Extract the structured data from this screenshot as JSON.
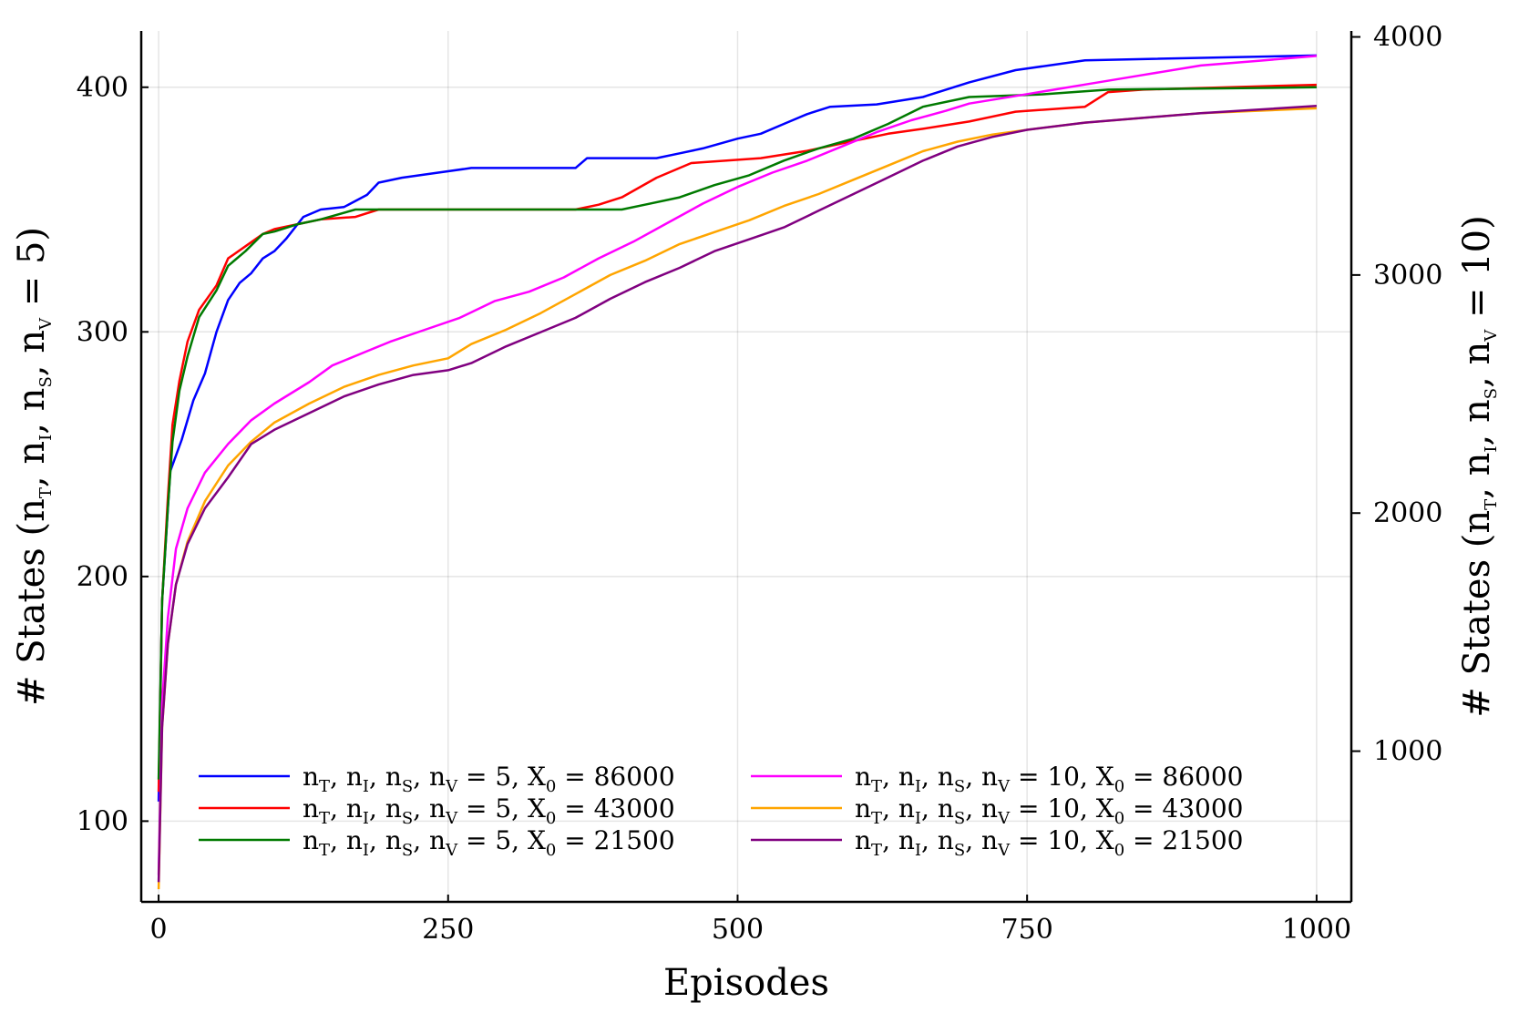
{
  "chart_data": {
    "type": "line",
    "title": "",
    "xlabel": "Episodes",
    "ylabel": "# States (n_T, n_I, n_S, n_V = 5)",
    "y2label": "# States (n_T, n_I, n_S, n_V = 10)",
    "ylabel_parts": {
      "prefix": "# States (",
      "vars": [
        "n",
        "T",
        "n",
        "I",
        "n",
        "S",
        "n",
        "V"
      ],
      "suffix": " = 5)"
    },
    "y2label_parts": {
      "prefix": "# States (",
      "vars": [
        "n",
        "T",
        "n",
        "I",
        "n",
        "S",
        "n",
        "V"
      ],
      "suffix": " = 10)"
    },
    "xlim": [
      -15,
      1030
    ],
    "ylim": [
      67,
      423
    ],
    "y2lim": [
      367,
      4025
    ],
    "xticks": [
      0,
      250,
      500,
      750,
      1000
    ],
    "xtick_labels": [
      "0",
      "250",
      "500",
      "750",
      "1000"
    ],
    "yticks": [
      100,
      200,
      300,
      400
    ],
    "ytick_labels": [
      "100",
      "200",
      "300",
      "400"
    ],
    "y2ticks": [
      1000,
      2000,
      3000,
      4000
    ],
    "y2tick_labels": [
      "1000",
      "2000",
      "3000",
      "4000"
    ],
    "grid": true,
    "legend_position": "bottom",
    "legend_columns": 2,
    "series": [
      {
        "name": "n_T, n_I, n_S, n_V = 5,  X_0 = 86000",
        "nval": "5",
        "x0": "86000",
        "axis": "left",
        "color": "#0000ff",
        "points": [
          [
            0,
            108
          ],
          [
            3,
            190
          ],
          [
            10,
            243
          ],
          [
            20,
            256
          ],
          [
            30,
            272
          ],
          [
            40,
            283
          ],
          [
            50,
            300
          ],
          [
            60,
            313
          ],
          [
            70,
            320
          ],
          [
            80,
            324
          ],
          [
            90,
            330
          ],
          [
            100,
            333
          ],
          [
            110,
            338
          ],
          [
            125,
            347
          ],
          [
            140,
            350
          ],
          [
            160,
            351
          ],
          [
            180,
            356
          ],
          [
            190,
            361
          ],
          [
            210,
            363
          ],
          [
            240,
            365
          ],
          [
            270,
            367
          ],
          [
            300,
            367
          ],
          [
            360,
            367
          ],
          [
            370,
            371
          ],
          [
            430,
            371
          ],
          [
            450,
            373
          ],
          [
            470,
            375
          ],
          [
            500,
            379
          ],
          [
            520,
            381
          ],
          [
            540,
            385
          ],
          [
            560,
            389
          ],
          [
            580,
            392
          ],
          [
            620,
            393
          ],
          [
            660,
            396
          ],
          [
            700,
            402
          ],
          [
            740,
            407
          ],
          [
            800,
            411
          ],
          [
            1000,
            413
          ]
        ]
      },
      {
        "name": "n_T, n_I, n_S, n_V = 5,  X_0 = 43000",
        "nval": "5",
        "x0": "43000",
        "axis": "left",
        "color": "#ff0000",
        "points": [
          [
            0,
            112
          ],
          [
            3,
            190
          ],
          [
            8,
            232
          ],
          [
            12,
            262
          ],
          [
            18,
            280
          ],
          [
            25,
            296
          ],
          [
            35,
            309
          ],
          [
            50,
            319
          ],
          [
            60,
            330
          ],
          [
            75,
            335
          ],
          [
            90,
            340
          ],
          [
            100,
            342
          ],
          [
            120,
            344
          ],
          [
            140,
            346
          ],
          [
            170,
            347
          ],
          [
            190,
            350
          ],
          [
            360,
            350
          ],
          [
            380,
            352
          ],
          [
            400,
            355
          ],
          [
            430,
            363
          ],
          [
            460,
            369
          ],
          [
            520,
            371
          ],
          [
            560,
            374
          ],
          [
            600,
            378
          ],
          [
            630,
            381
          ],
          [
            660,
            383
          ],
          [
            700,
            386
          ],
          [
            740,
            390
          ],
          [
            800,
            392
          ],
          [
            820,
            398
          ],
          [
            850,
            399
          ],
          [
            1000,
            401
          ]
        ]
      },
      {
        "name": "n_T, n_I, n_S, n_V = 5,  X_0 = 21500",
        "nval": "5",
        "x0": "21500",
        "axis": "left",
        "color": "#007a00",
        "points": [
          [
            0,
            117
          ],
          [
            3,
            190
          ],
          [
            8,
            228
          ],
          [
            12,
            255
          ],
          [
            18,
            276
          ],
          [
            25,
            290
          ],
          [
            35,
            306
          ],
          [
            50,
            317
          ],
          [
            60,
            327
          ],
          [
            75,
            333
          ],
          [
            90,
            340
          ],
          [
            100,
            341
          ],
          [
            120,
            344
          ],
          [
            140,
            346
          ],
          [
            170,
            350
          ],
          [
            400,
            350
          ],
          [
            420,
            352
          ],
          [
            450,
            355
          ],
          [
            480,
            360
          ],
          [
            510,
            364
          ],
          [
            540,
            370
          ],
          [
            570,
            375
          ],
          [
            600,
            379
          ],
          [
            630,
            385
          ],
          [
            660,
            392
          ],
          [
            700,
            396
          ],
          [
            760,
            397
          ],
          [
            820,
            399
          ],
          [
            1000,
            400
          ]
        ]
      },
      {
        "name": "n_T, n_I, n_S, n_V = 10,  X_0 = 86000",
        "nval": "10",
        "x0": "86000",
        "axis": "right",
        "color": "#ff00ff",
        "points": [
          [
            0,
            480
          ],
          [
            3,
            1200
          ],
          [
            8,
            1560
          ],
          [
            15,
            1850
          ],
          [
            25,
            2020
          ],
          [
            40,
            2170
          ],
          [
            60,
            2290
          ],
          [
            80,
            2390
          ],
          [
            100,
            2460
          ],
          [
            130,
            2550
          ],
          [
            150,
            2620
          ],
          [
            180,
            2680
          ],
          [
            200,
            2720
          ],
          [
            230,
            2770
          ],
          [
            260,
            2820
          ],
          [
            290,
            2890
          ],
          [
            320,
            2930
          ],
          [
            350,
            2990
          ],
          [
            380,
            3070
          ],
          [
            410,
            3140
          ],
          [
            440,
            3220
          ],
          [
            470,
            3300
          ],
          [
            500,
            3370
          ],
          [
            530,
            3430
          ],
          [
            560,
            3480
          ],
          [
            590,
            3540
          ],
          [
            620,
            3600
          ],
          [
            650,
            3650
          ],
          [
            680,
            3690
          ],
          [
            700,
            3720
          ],
          [
            750,
            3760
          ],
          [
            800,
            3800
          ],
          [
            850,
            3840
          ],
          [
            900,
            3880
          ],
          [
            950,
            3900
          ],
          [
            1000,
            3920
          ]
        ]
      },
      {
        "name": "n_T, n_I, n_S, n_V = 10,  X_0 = 43000",
        "nval": "10",
        "x0": "43000",
        "axis": "right",
        "color": "#ffa500",
        "points": [
          [
            0,
            420
          ],
          [
            3,
            1100
          ],
          [
            8,
            1450
          ],
          [
            15,
            1700
          ],
          [
            25,
            1880
          ],
          [
            40,
            2050
          ],
          [
            60,
            2200
          ],
          [
            80,
            2300
          ],
          [
            100,
            2380
          ],
          [
            130,
            2460
          ],
          [
            160,
            2530
          ],
          [
            190,
            2580
          ],
          [
            220,
            2620
          ],
          [
            250,
            2650
          ],
          [
            270,
            2710
          ],
          [
            300,
            2770
          ],
          [
            330,
            2840
          ],
          [
            360,
            2920
          ],
          [
            390,
            3000
          ],
          [
            420,
            3060
          ],
          [
            450,
            3130
          ],
          [
            480,
            3180
          ],
          [
            510,
            3230
          ],
          [
            540,
            3290
          ],
          [
            570,
            3340
          ],
          [
            600,
            3400
          ],
          [
            630,
            3460
          ],
          [
            660,
            3520
          ],
          [
            690,
            3560
          ],
          [
            720,
            3590
          ],
          [
            750,
            3610
          ],
          [
            800,
            3640
          ],
          [
            850,
            3660
          ],
          [
            900,
            3680
          ],
          [
            1000,
            3700
          ]
        ]
      },
      {
        "name": "n_T, n_I, n_S, n_V = 10,  X_0 = 21500",
        "nval": "10",
        "x0": "21500",
        "axis": "right",
        "color": "#800080",
        "points": [
          [
            0,
            450
          ],
          [
            3,
            1100
          ],
          [
            8,
            1450
          ],
          [
            15,
            1700
          ],
          [
            25,
            1870
          ],
          [
            40,
            2020
          ],
          [
            60,
            2150
          ],
          [
            80,
            2290
          ],
          [
            100,
            2350
          ],
          [
            130,
            2420
          ],
          [
            160,
            2490
          ],
          [
            190,
            2540
          ],
          [
            220,
            2580
          ],
          [
            250,
            2600
          ],
          [
            270,
            2630
          ],
          [
            300,
            2700
          ],
          [
            330,
            2760
          ],
          [
            360,
            2820
          ],
          [
            390,
            2900
          ],
          [
            420,
            2970
          ],
          [
            450,
            3030
          ],
          [
            480,
            3100
          ],
          [
            510,
            3150
          ],
          [
            540,
            3200
          ],
          [
            570,
            3270
          ],
          [
            600,
            3340
          ],
          [
            630,
            3410
          ],
          [
            660,
            3480
          ],
          [
            690,
            3540
          ],
          [
            720,
            3580
          ],
          [
            750,
            3610
          ],
          [
            800,
            3640
          ],
          [
            850,
            3660
          ],
          [
            900,
            3680
          ],
          [
            1000,
            3710
          ]
        ]
      }
    ]
  }
}
